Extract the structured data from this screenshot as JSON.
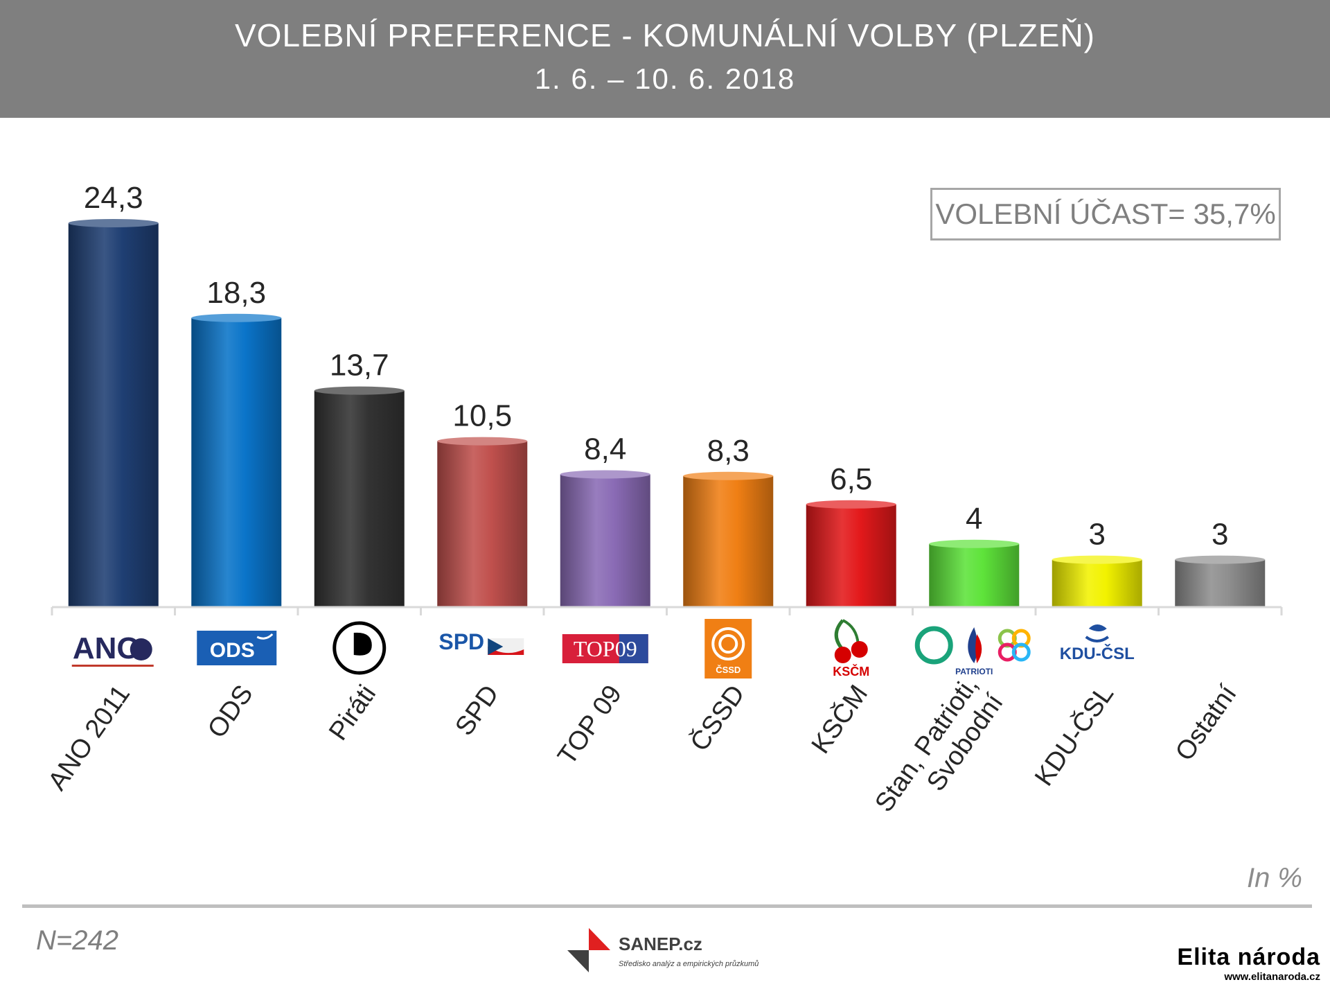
{
  "header": {
    "title": "VOLEBNÍ PREFERENCE - KOMUNÁLNÍ VOLBY (PLZEŇ)",
    "subtitle": "1. 6. – 10. 6. 2018"
  },
  "turnout_label": "VOLEBNÍ ÚČAST= 35,7%",
  "unit_label": "In %",
  "sample_label": "N=242",
  "footer_logo": {
    "name": "SANEP.cz",
    "tagline": "Středisko analýz a empirických průzkumů"
  },
  "watermark": {
    "name": "Elita národa",
    "url": "www.elitanaroda.cz"
  },
  "party_logos": [
    {
      "icon": "ano-logo-icon",
      "text": "ANO"
    },
    {
      "icon": "ods-logo-icon",
      "text": "ODS"
    },
    {
      "icon": "pirati-logo-icon",
      "text": ""
    },
    {
      "icon": "spd-logo-icon",
      "text": "SPD"
    },
    {
      "icon": "top09-logo-icon",
      "text": "TOP09"
    },
    {
      "icon": "cssd-logo-icon",
      "text": "ČSSD"
    },
    {
      "icon": "kscm-logo-icon",
      "text": "KSČM"
    },
    {
      "icon": "stan-patrioti-svobodni-logo-icon",
      "text": "PATRIOTI"
    },
    {
      "icon": "kdu-csl-logo-icon",
      "text": "KDU-ČSL"
    },
    {
      "icon": "",
      "text": ""
    }
  ],
  "chart_data": {
    "type": "bar",
    "title": "VOLEBNÍ PREFERENCE - KOMUNÁLNÍ VOLBY (PLZEŇ)",
    "categories": [
      "ANO 2011",
      "ODS",
      "Piráti",
      "SPD",
      "TOP 09",
      "ČSSD",
      "KSČM",
      "Stan, Patrioti, Svobodní",
      "KDU-ČSL",
      "Ostatní"
    ],
    "value_labels": [
      "24,3",
      "18,3",
      "13,7",
      "10,5",
      "8,4",
      "8,3",
      "6,5",
      "4",
      "3",
      "3"
    ],
    "values": [
      24.3,
      18.3,
      13.7,
      10.5,
      8.4,
      8.3,
      6.5,
      4,
      3,
      3
    ],
    "colors": [
      "#1f3f73",
      "#0a74c9",
      "#333333",
      "#c0504d",
      "#8a6bb5",
      "#f07f14",
      "#e3191b",
      "#5ee33a",
      "#f2f200",
      "#8e8e8e"
    ],
    "ylim": [
      0,
      25
    ],
    "grid": false,
    "legend": "none"
  }
}
